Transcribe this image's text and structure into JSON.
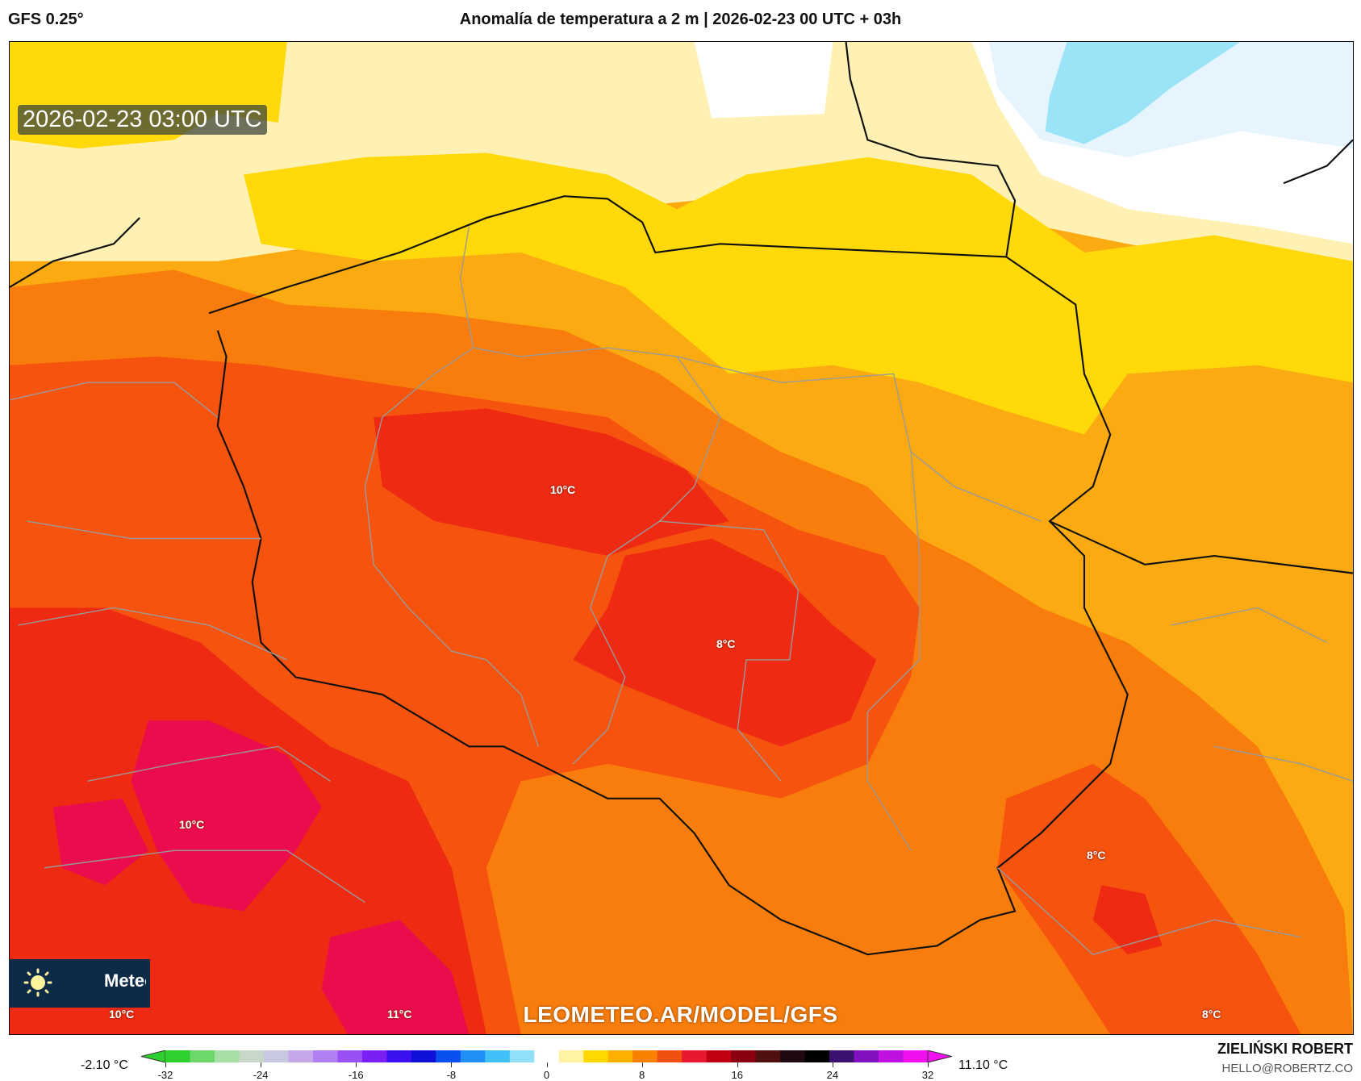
{
  "header": {
    "model": "GFS 0.25°",
    "title": "Anomalía de temperatura a 2 m | 2026-02-23 00 UTC + 03h"
  },
  "map": {
    "valid_time": "2026-02-23 03:00 UTC",
    "watermark": "LEOMETEO.AR/MODEL/GFS",
    "logo": {
      "icon": "sun-icon",
      "text": "Meteo"
    },
    "contour_labels": [
      "10°C",
      "8°C",
      "10°C",
      "8°C",
      "10°C",
      "11°C",
      "8°C"
    ],
    "colors": {
      "light_yellow": "#fff1b3",
      "yellow": "#ffd90a",
      "orange": "#fcaa12",
      "dark_orange": "#f97d0c",
      "red_orange": "#f5530e",
      "red": "#ee2a12",
      "magenta_red": "#ea0c4c",
      "light_blue": "#9be3f7",
      "pale_blue": "#e6f5fd"
    }
  },
  "colorbar": {
    "min_label": "-2.10 °C",
    "max_label": "11.10 °C",
    "ticks": [
      "-32",
      "-24",
      "-16",
      "-8",
      "0",
      "8",
      "16",
      "24",
      "32"
    ],
    "colors": [
      "#2fcf2f",
      "#6cd86c",
      "#a6e0a6",
      "#c8d8c8",
      "#c8c8e0",
      "#c4a8e8",
      "#b080f0",
      "#9a50f5",
      "#7a20f5",
      "#3a10f0",
      "#1010d8",
      "#0a50f0",
      "#2090f8",
      "#40c0f8",
      "#90e0f8",
      "#ffffff",
      "#fff2a0",
      "#ffd800",
      "#ffb000",
      "#fa8000",
      "#f05010",
      "#e81830",
      "#c00010",
      "#8a0010",
      "#501010",
      "#200810",
      "#000000",
      "#3a1070",
      "#8010c0",
      "#c010e0",
      "#f010f0"
    ]
  },
  "credits": {
    "author": "ZIELIŃSKI ROBERT",
    "email": "HELLO@ROBERTZ.CO"
  }
}
